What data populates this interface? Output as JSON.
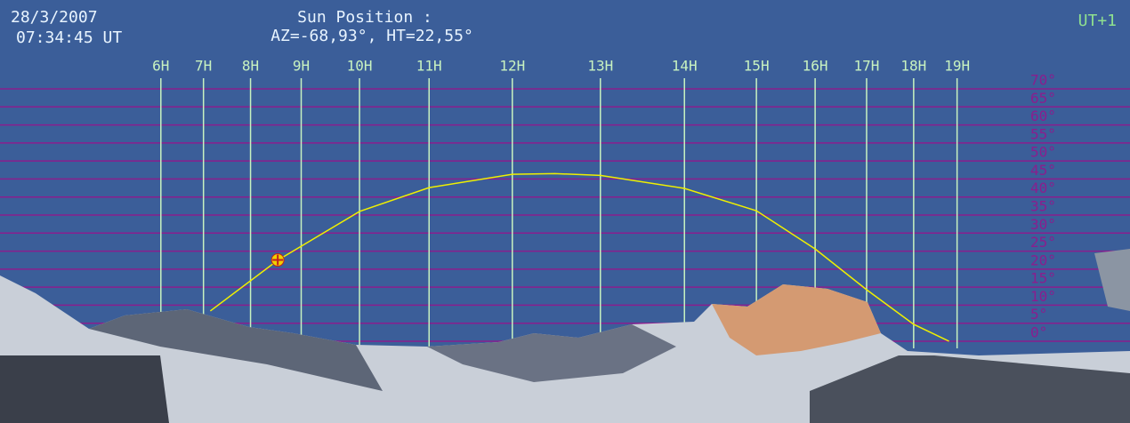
{
  "header": {
    "date": "28/3/2007",
    "time": "07:34:45 UT",
    "label": "Sun Position :",
    "position": "AZ=-68,93°, HT=22,55°",
    "zone": "UT+1"
  },
  "chart_data": {
    "type": "line",
    "xlim": [
      -138,
      143
    ],
    "ylim": [
      0,
      70
    ],
    "xticks": [
      {
        "value": -98,
        "label": "6H"
      },
      {
        "value": -87.4,
        "label": "7H"
      },
      {
        "value": -75.7,
        "label": "8H"
      },
      {
        "value": -63.1,
        "label": "9H"
      },
      {
        "value": -48.6,
        "label": "10H"
      },
      {
        "value": -31.3,
        "label": "11H"
      },
      {
        "value": -10.6,
        "label": "12H"
      },
      {
        "value": 11.3,
        "label": "13H"
      },
      {
        "value": 32.2,
        "label": "14H"
      },
      {
        "value": 50.1,
        "label": "15H"
      },
      {
        "value": 64.7,
        "label": "16H"
      },
      {
        "value": 77.5,
        "label": "17H"
      },
      {
        "value": 89.2,
        "label": "18H"
      },
      {
        "value": 100,
        "label": "19H"
      }
    ],
    "yticks": [
      {
        "value": 0,
        "label": "0°"
      },
      {
        "value": 5,
        "label": "5°"
      },
      {
        "value": 10,
        "label": "10°"
      },
      {
        "value": 15,
        "label": "15°"
      },
      {
        "value": 20,
        "label": "20°"
      },
      {
        "value": 25,
        "label": "25°"
      },
      {
        "value": 30,
        "label": "30°"
      },
      {
        "value": 35,
        "label": "35°"
      },
      {
        "value": 40,
        "label": "40°"
      },
      {
        "value": 45,
        "label": "45°"
      },
      {
        "value": 50,
        "label": "50°"
      },
      {
        "value": 55,
        "label": "55°"
      },
      {
        "value": 60,
        "label": "60°"
      },
      {
        "value": 65,
        "label": "65°"
      },
      {
        "value": 70,
        "label": "70°"
      }
    ],
    "grid": true,
    "grid_color": "#8a1e8e",
    "hour_color": "#c8f2c0",
    "series": [
      {
        "color": "#f0f000",
        "x": [
          -85.7,
          -68.9,
          -48.6,
          -31.3,
          -10.6,
          0,
          11.3,
          32.2,
          50.1,
          64.7,
          77.5,
          89.2,
          98
        ],
        "values": [
          8.4,
          22.5,
          36,
          42.6,
          46.3,
          46.5,
          46,
          42.4,
          36.2,
          25.6,
          14.3,
          4.7,
          0
        ]
      }
    ],
    "marker": {
      "x": -68.93,
      "y": 22.55,
      "color": "#f0d000"
    }
  }
}
